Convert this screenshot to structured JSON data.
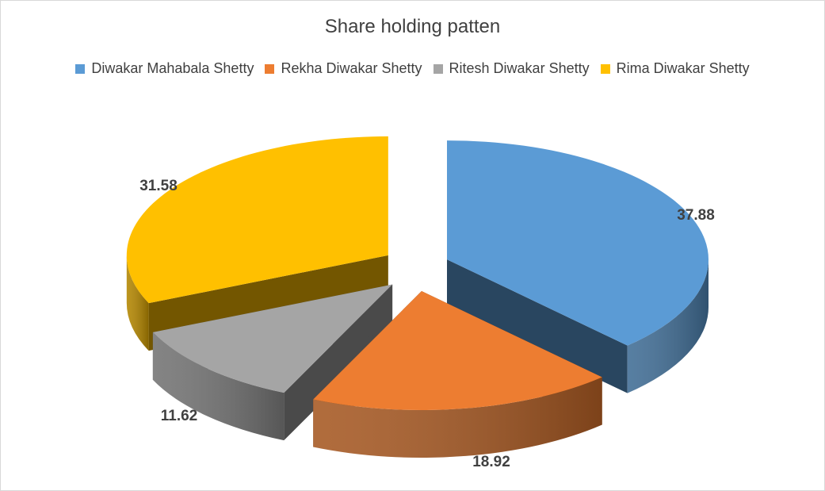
{
  "chart_data": {
    "type": "pie",
    "title": "Share holding patten",
    "categories": [
      "Diwakar Mahabala Shetty",
      "Rekha Diwakar Shetty",
      "Ritesh Diwakar Shetty",
      "Rima Diwakar Shetty"
    ],
    "values": [
      37.88,
      18.92,
      11.62,
      31.58
    ],
    "value_labels": [
      "37.88",
      "18.92",
      "11.62",
      "31.58"
    ],
    "colors": [
      "#5b9bd5",
      "#ed7d31",
      "#a5a5a5",
      "#ffc000"
    ],
    "style": "3d exploded pie",
    "legend_position": "top"
  }
}
